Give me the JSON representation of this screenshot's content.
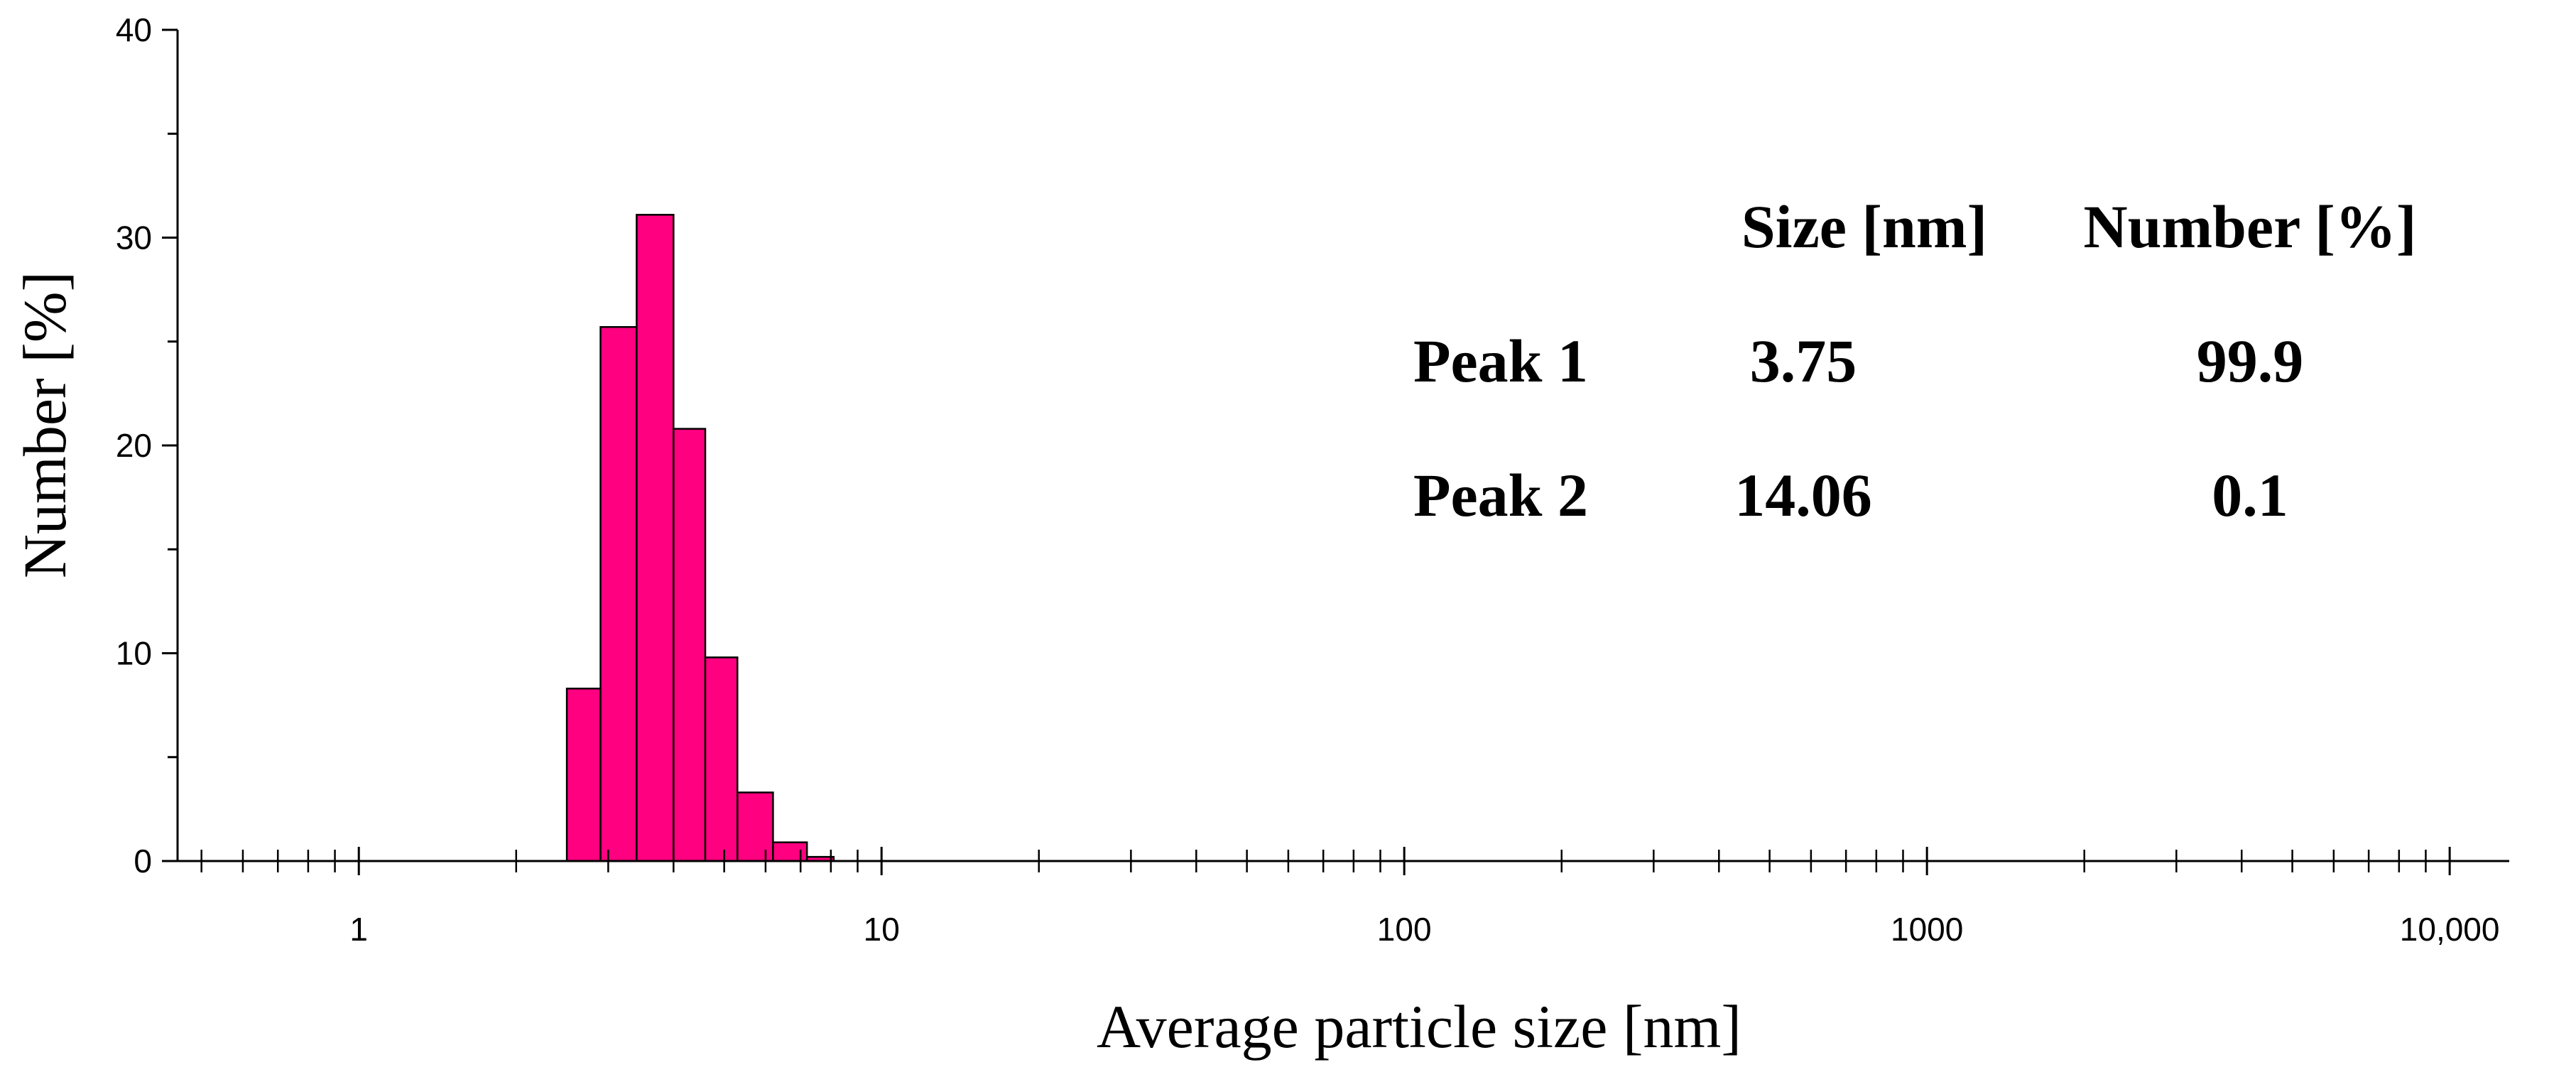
{
  "chart_data": {
    "type": "bar",
    "title": "",
    "xlabel": "Average particle size [nm]",
    "ylabel": "Number [%]",
    "x_scale": "log",
    "xlim": [
      0.45,
      13000
    ],
    "ylim": [
      0,
      40
    ],
    "grid": false,
    "x_ticks": [
      {
        "value": 1,
        "label": "1"
      },
      {
        "value": 10,
        "label": "10"
      },
      {
        "value": 100,
        "label": "100"
      },
      {
        "value": 1000,
        "label": "1000"
      },
      {
        "value": 10000,
        "label": "10,000"
      }
    ],
    "y_ticks": [
      {
        "value": 0,
        "label": "0"
      },
      {
        "value": 10,
        "label": "10"
      },
      {
        "value": 20,
        "label": "20"
      },
      {
        "value": 30,
        "label": "30"
      },
      {
        "value": 40,
        "label": "40"
      }
    ],
    "bar_color": "#ff0080",
    "bins": [
      {
        "x0": 2.5,
        "x1": 2.9,
        "value": 8.3
      },
      {
        "x0": 2.9,
        "x1": 3.4,
        "value": 25.7
      },
      {
        "x0": 3.4,
        "x1": 4.0,
        "value": 31.1
      },
      {
        "x0": 4.0,
        "x1": 4.6,
        "value": 20.8
      },
      {
        "x0": 4.6,
        "x1": 5.3,
        "value": 9.8
      },
      {
        "x0": 5.3,
        "x1": 6.2,
        "value": 3.3
      },
      {
        "x0": 6.2,
        "x1": 7.2,
        "value": 0.9
      },
      {
        "x0": 7.2,
        "x1": 8.1,
        "value": 0.2
      }
    ],
    "table": {
      "headers": [
        "",
        "Size [nm]",
        "Number [%]"
      ],
      "rows": [
        [
          "Peak 1",
          "3.75",
          "99.9"
        ],
        [
          "Peak 2",
          "14.06",
          "0.1"
        ]
      ]
    }
  }
}
